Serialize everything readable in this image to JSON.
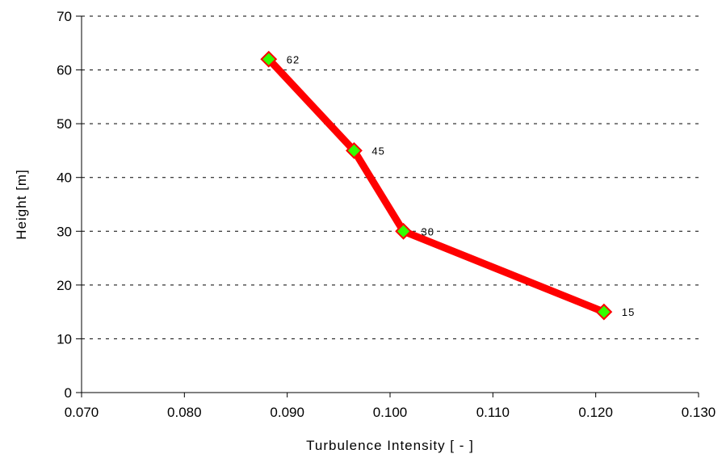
{
  "chart_data": {
    "type": "line",
    "title": "",
    "xlabel": "Turbulence Intensity [ - ]",
    "ylabel": "Height [m]",
    "xlim": [
      0.07,
      0.13
    ],
    "ylim": [
      0,
      70
    ],
    "x_ticks": [
      "0.070",
      "0.080",
      "0.090",
      "0.100",
      "0.110",
      "0.120",
      "0.130"
    ],
    "y_ticks": [
      "0",
      "10",
      "20",
      "30",
      "40",
      "50",
      "60",
      "70"
    ],
    "grid": "horizontal dashed",
    "series": [
      {
        "line_color": "#ff0000",
        "marker": "diamond",
        "marker_fill": "#33ff00",
        "marker_edge": "#ff0000",
        "points": [
          {
            "x": 0.1208,
            "y": 15,
            "label": "15"
          },
          {
            "x": 0.1013,
            "y": 30,
            "label": "30"
          },
          {
            "x": 0.0965,
            "y": 45,
            "label": "45"
          },
          {
            "x": 0.0882,
            "y": 62,
            "label": "62"
          }
        ]
      }
    ]
  }
}
